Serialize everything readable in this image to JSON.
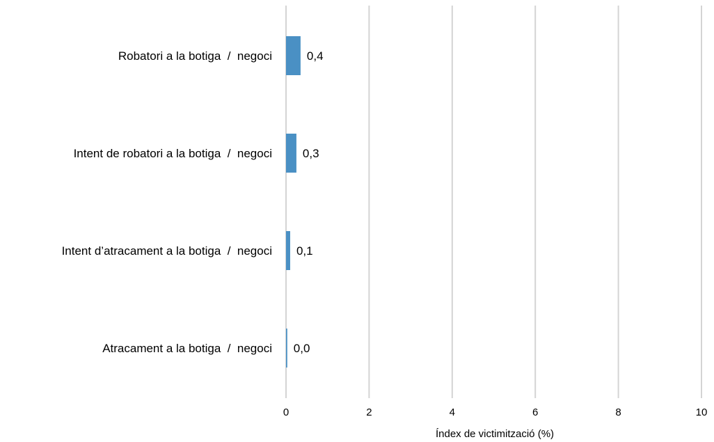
{
  "chart_data": {
    "type": "bar",
    "orientation": "horizontal",
    "categories": [
      "Robatori a la botiga  /  negoci",
      "Intent de robatori a la botiga  /  negoci",
      "Intent d’atracament a la botiga  /  negoci",
      "Atracament a la botiga  /  negoci"
    ],
    "values": [
      0.35,
      0.25,
      0.1,
      0.03
    ],
    "value_labels": [
      "0,4",
      "0,3",
      "0,1",
      "0,0"
    ],
    "xlabel": "Índex de victimització (%)",
    "xlim": [
      0,
      10
    ],
    "xticks": [
      0,
      2,
      4,
      6,
      8,
      10
    ],
    "xtick_labels": [
      "0",
      "2",
      "4",
      "6",
      "8",
      "10"
    ],
    "grid": "vertical",
    "colors": {
      "bar": "#4a90c4",
      "grid": "#d4d4d4"
    }
  }
}
